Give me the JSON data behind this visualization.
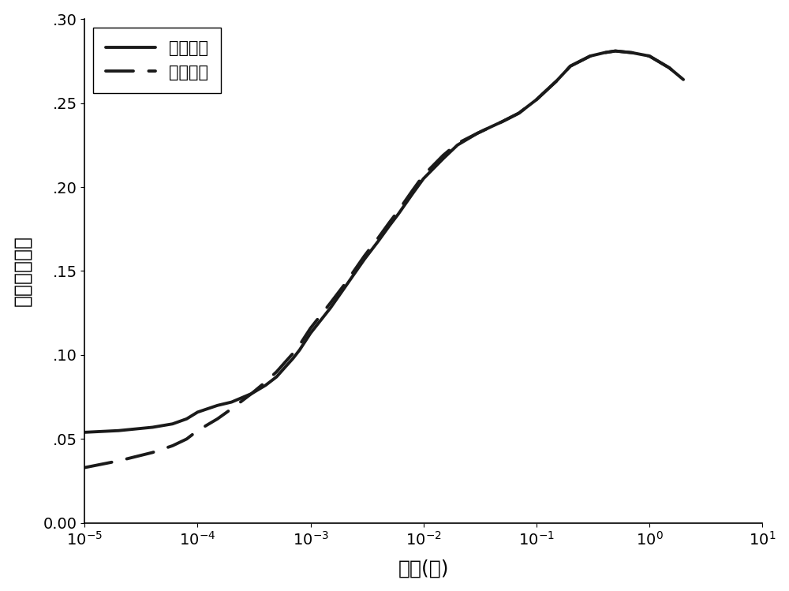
{
  "xlabel": "时间(秒)",
  "ylabel": "相对荧光强度",
  "ylim": [
    0.0,
    0.3
  ],
  "yticks": [
    0.0,
    0.05,
    0.1,
    0.15,
    0.2,
    0.25,
    0.3
  ],
  "ytick_labels": [
    "0.00",
    ".05",
    ".10",
    ".15",
    ".20",
    ".25",
    ".30"
  ],
  "legend_labels": [
    "实验结果",
    "拟合结果"
  ],
  "line_color": "#1a1a1a",
  "background_color": "#ffffff",
  "xlabel_fontsize": 18,
  "ylabel_fontsize": 18,
  "legend_fontsize": 15,
  "tick_fontsize": 14,
  "exp_x": [
    1e-05,
    2e-05,
    4e-05,
    6e-05,
    8e-05,
    0.0001,
    0.00015,
    0.0002,
    0.0003,
    0.0004,
    0.0005,
    0.0006,
    0.0007,
    0.0008,
    0.001,
    0.0015,
    0.002,
    0.003,
    0.004,
    0.005,
    0.006,
    0.008,
    0.01,
    0.015,
    0.02,
    0.03,
    0.04,
    0.05,
    0.07,
    0.1,
    0.15,
    0.2,
    0.3,
    0.4,
    0.5,
    0.7,
    1.0,
    1.5,
    2.0
  ],
  "exp_y": [
    0.054,
    0.055,
    0.057,
    0.059,
    0.062,
    0.066,
    0.07,
    0.072,
    0.077,
    0.082,
    0.087,
    0.093,
    0.098,
    0.103,
    0.113,
    0.128,
    0.14,
    0.157,
    0.168,
    0.177,
    0.184,
    0.196,
    0.205,
    0.217,
    0.225,
    0.232,
    0.236,
    0.239,
    0.244,
    0.252,
    0.263,
    0.272,
    0.278,
    0.28,
    0.281,
    0.28,
    0.278,
    0.271,
    0.264
  ],
  "fit_x": [
    1e-05,
    2e-05,
    4e-05,
    6e-05,
    8e-05,
    0.0001,
    0.00015,
    0.0002,
    0.0003,
    0.0004,
    0.0005,
    0.0006,
    0.0007,
    0.0008,
    0.001,
    0.0015,
    0.002,
    0.003,
    0.004,
    0.005,
    0.006,
    0.008,
    0.01,
    0.015,
    0.02,
    0.03,
    0.04,
    0.05,
    0.07,
    0.1,
    0.15,
    0.2,
    0.3,
    0.4,
    0.5,
    0.7,
    1.0,
    1.5,
    2.0
  ],
  "fit_y": [
    0.033,
    0.037,
    0.042,
    0.046,
    0.05,
    0.055,
    0.062,
    0.068,
    0.077,
    0.084,
    0.09,
    0.096,
    0.101,
    0.106,
    0.116,
    0.131,
    0.142,
    0.159,
    0.17,
    0.179,
    0.186,
    0.198,
    0.207,
    0.219,
    0.226,
    0.232,
    0.236,
    0.239,
    0.244,
    0.252,
    0.263,
    0.272,
    0.278,
    0.28,
    0.281,
    0.28,
    0.278,
    0.271,
    0.264
  ]
}
